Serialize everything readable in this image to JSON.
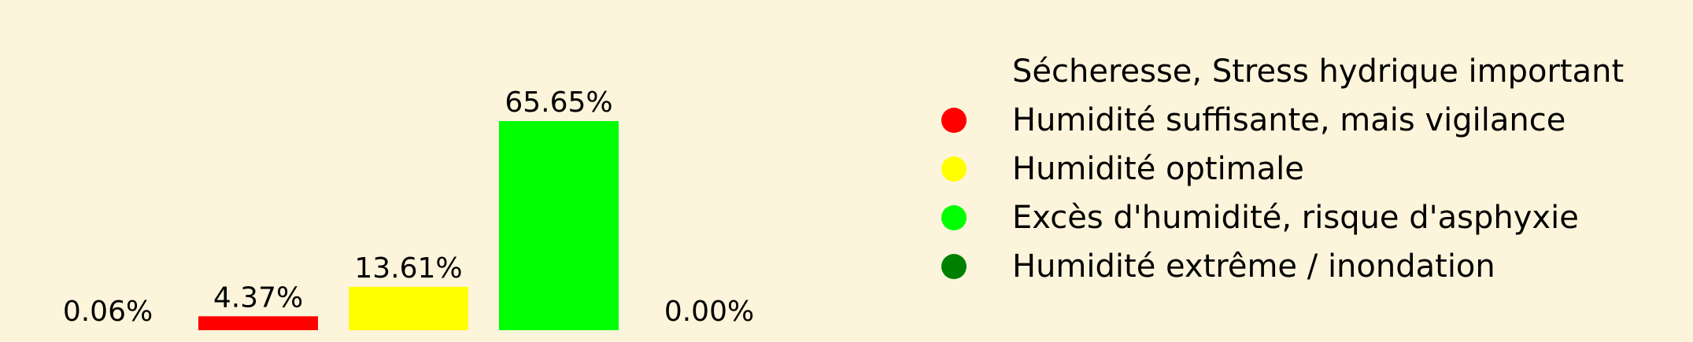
{
  "background": "#fdf5db",
  "chart_data": {
    "type": "bar",
    "categories": [
      "Sécheresse, Stress hydrique important",
      "Humidité suffisante, mais vigilance",
      "Humidité optimale",
      "Excès d'humidité, risque d'asphyxie",
      "Humidité extrême / inondation"
    ],
    "values": [
      0.06,
      4.37,
      13.61,
      65.65,
      0.0
    ],
    "value_labels": [
      "0.06%",
      "4.37%",
      "13.61%",
      "65.65%",
      "0.00%"
    ],
    "colors": [
      "#ffffff",
      "#ff0000",
      "#ffff00",
      "#00ff00",
      "#008000"
    ],
    "ylim": [
      0,
      65.65
    ],
    "grid": false,
    "legend_position": "right"
  },
  "legend": {
    "items": [
      {
        "label": "Sécheresse, Stress hydrique important",
        "color": "#fdf5db",
        "visible": false
      },
      {
        "label": "Humidité suffisante, mais vigilance",
        "color": "#ff0000",
        "visible": true
      },
      {
        "label": "Humidité optimale",
        "color": "#ffff00",
        "visible": true
      },
      {
        "label": "Excès d'humidité, risque d'asphyxie",
        "color": "#00ff00",
        "visible": true
      },
      {
        "label": "Humidité extrême / inondation",
        "color": "#008000",
        "visible": true
      }
    ]
  }
}
